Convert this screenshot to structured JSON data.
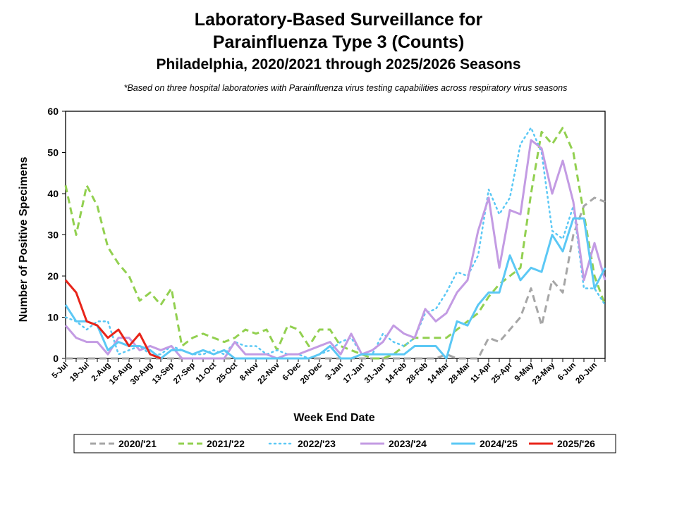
{
  "chart_data": {
    "type": "line",
    "title": "Laboratory-Based Surveillance for",
    "title_line2": "Parainfluenza Type 3 (Counts)",
    "subtitle": "Philadelphia, 2020/2021 through 2025/2026 Seasons",
    "note": "*Based on three hospital laboratories with Parainfluenza virus testing capabilities across respiratory virus seasons",
    "xlabel": "Week End Date",
    "ylabel": "Number of Positive Specimens",
    "ylim": [
      0,
      60
    ],
    "yticks": [
      0,
      10,
      20,
      30,
      40,
      50,
      60
    ],
    "grid": false,
    "legend_position": "bottom",
    "tick_labels": [
      "5-Jul",
      "19-Jul",
      "2-Aug",
      "16-Aug",
      "30-Aug",
      "13-Sep",
      "27-Sep",
      "11-Oct",
      "25-Oct",
      "8-Nov",
      "22-Nov",
      "6-Dec",
      "20-Dec",
      "3-Jan",
      "17-Jan",
      "31-Jan",
      "14-Feb",
      "28-Feb",
      "14-Mar",
      "28-Mar",
      "11-Apr",
      "25-Apr",
      "9-May",
      "23-May",
      "6-Jun",
      "20-Jun"
    ],
    "weeks": 52,
    "series": [
      {
        "name": "2020/'21",
        "color": "#a6a6a6",
        "style": "dashed",
        "values": [
          0,
          0,
          0,
          0,
          0,
          0,
          0,
          0,
          0,
          0,
          0,
          0,
          0,
          0,
          0,
          0,
          0,
          0,
          0,
          0,
          0,
          0,
          0,
          0,
          0,
          0,
          0,
          0,
          0,
          0,
          0,
          0,
          0,
          0,
          0,
          0,
          1,
          0,
          0,
          0,
          5,
          4,
          7,
          10,
          17,
          8,
          19,
          16,
          30,
          37,
          39,
          38
        ]
      },
      {
        "name": "2021/'22",
        "color": "#92d050",
        "style": "dashed",
        "values": [
          42,
          30,
          42,
          37,
          27,
          23,
          20,
          14,
          16,
          13,
          17,
          3,
          5,
          6,
          5,
          4,
          5,
          7,
          6,
          7,
          2,
          8,
          7,
          3,
          7,
          7,
          3,
          2,
          1,
          0,
          0,
          1,
          3,
          5,
          5,
          5,
          5,
          7,
          9,
          11,
          15,
          18,
          20,
          22,
          40,
          55,
          52,
          56,
          50,
          35,
          20,
          13
        ]
      },
      {
        "name": "2022/'23",
        "color": "#5bc8f5",
        "style": "dotted",
        "values": [
          10,
          9,
          7,
          9,
          9,
          1,
          2,
          3,
          1,
          1,
          3,
          2,
          1,
          1,
          2,
          1,
          4,
          3,
          3,
          1,
          2,
          1,
          1,
          0,
          1,
          2,
          4,
          5,
          1,
          1,
          6,
          4,
          3,
          5,
          11,
          12,
          16,
          21,
          20,
          25,
          41,
          35,
          39,
          52,
          56,
          50,
          31,
          29,
          37,
          17,
          17,
          13
        ]
      },
      {
        "name": "2023/'24",
        "color": "#c39be3",
        "style": "solid",
        "values": [
          8,
          5,
          4,
          4,
          1,
          5,
          5,
          2,
          3,
          2,
          3,
          0,
          0,
          0,
          0,
          0,
          4,
          1,
          1,
          1,
          0,
          1,
          1,
          2,
          3,
          4,
          1,
          6,
          1,
          2,
          4,
          8,
          6,
          5,
          12,
          9,
          11,
          16,
          19,
          31,
          39,
          22,
          36,
          35,
          53,
          51,
          40,
          48,
          38,
          19,
          28,
          19
        ]
      },
      {
        "name": "2024/'25",
        "color": "#5bc8f5",
        "style": "solid",
        "values": [
          13,
          9,
          9,
          8,
          2,
          4,
          3,
          3,
          2,
          0,
          2,
          2,
          1,
          2,
          1,
          2,
          0,
          0,
          0,
          0,
          0,
          0,
          0,
          0,
          1,
          3,
          0,
          0,
          1,
          1,
          1,
          1,
          1,
          3,
          3,
          3,
          0,
          9,
          8,
          13,
          16,
          16,
          25,
          19,
          22,
          21,
          30,
          26,
          34,
          34,
          17,
          22
        ]
      },
      {
        "name": "2025/'26",
        "color": "#e8251a",
        "style": "solid",
        "values": [
          19,
          16,
          9,
          8,
          5,
          7,
          3,
          6,
          1,
          0
        ]
      }
    ]
  }
}
